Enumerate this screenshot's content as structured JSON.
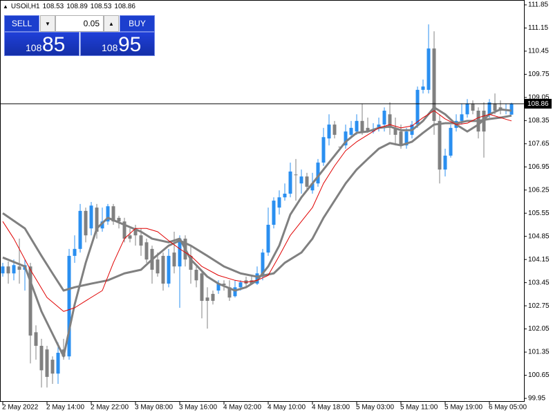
{
  "chart_data": {
    "type": "candlestick",
    "title": "USOil,H1",
    "categories": [
      "2 May 2022",
      null,
      null,
      null,
      null,
      null,
      null,
      null,
      "2 May 14:00",
      null,
      null,
      null,
      null,
      null,
      null,
      null,
      "2 May 22:00",
      null,
      null,
      null,
      null,
      null,
      null,
      null,
      "3 May 08:00",
      null,
      null,
      null,
      null,
      null,
      null,
      null,
      "3 May 16:00",
      null,
      null,
      null,
      null,
      null,
      null,
      null,
      "4 May 02:00",
      null,
      null,
      null,
      null,
      null,
      null,
      null,
      "4 May 10:00",
      null,
      null,
      null,
      null,
      null,
      null,
      null,
      "4 May 18:00",
      null,
      null,
      null,
      null,
      null,
      null,
      null,
      "5 May 03:00",
      null,
      null,
      null,
      null,
      null,
      null,
      null,
      "5 May 11:00",
      null,
      null,
      null,
      null,
      null,
      null,
      null,
      "5 May 19:00",
      null,
      null,
      null,
      null,
      null,
      null,
      null,
      "6 May 05:00",
      null,
      null,
      null,
      null
    ],
    "open": [
      103.73,
      103.94,
      103.73,
      103.94,
      103.84,
      103.94,
      101.95,
      101.54,
      101.43,
      101.12,
      100.7,
      101.43,
      101.22,
      104.26,
      104.47,
      105.62,
      105.09,
      105.72,
      105.09,
      105.3,
      105.76,
      105.41,
      105.3,
      104.88,
      105.09,
      104.88,
      104.67,
      104.47,
      104.15,
      104.26,
      103.42,
      104.36,
      103.94,
      104.78,
      104.26,
      103.84,
      103.73,
      103.0,
      103.11,
      103.21,
      103.42,
      103.31,
      103.04,
      103.31,
      103.52,
      103.52,
      103.42,
      103.63,
      104.36,
      105.2,
      105.72,
      106.03,
      106.14,
      106.72,
      106.45,
      106.66,
      106.24,
      106.45,
      107.08,
      107.81,
      108.23,
      107.56,
      107.6,
      107.92,
      108.02,
      108.34,
      108.13,
      108.02,
      108.13,
      108.23,
      108.54,
      108.13,
      108.02,
      107.6,
      107.92,
      108.23,
      109.28,
      109.28,
      110.53,
      108.34,
      106.87,
      107.29,
      108.13,
      108.34,
      108.54,
      108.86,
      108.65,
      108.65,
      108.54,
      108.86,
      108.75,
      108.65,
      108.53
    ],
    "high": [
      104.05,
      104.09,
      104.15,
      104.78,
      104.15,
      104.05,
      102.16,
      101.75,
      101.54,
      101.22,
      101.64,
      101.75,
      104.47,
      104.88,
      105.83,
      105.72,
      105.89,
      105.83,
      105.72,
      105.83,
      105.83,
      105.47,
      105.41,
      105.09,
      105.2,
      105.09,
      104.78,
      104.57,
      104.36,
      104.36,
      104.47,
      104.99,
      104.88,
      104.88,
      104.57,
      103.94,
      103.84,
      103.31,
      103.21,
      103.52,
      103.52,
      103.52,
      103.52,
      103.52,
      103.63,
      103.67,
      103.94,
      104.47,
      105.72,
      106.03,
      106.24,
      106.45,
      107.08,
      107.19,
      106.87,
      106.77,
      106.77,
      107.19,
      108.13,
      108.54,
      108.34,
      107.56,
      108.23,
      108.34,
      108.54,
      108.86,
      108.44,
      108.27,
      108.44,
      108.75,
      108.9,
      108.44,
      108.23,
      108.13,
      108.34,
      109.38,
      109.59,
      111.26,
      111.05,
      108.54,
      107.5,
      108.23,
      108.54,
      108.86,
      109.0,
      108.96,
      108.75,
      108.9,
      109.0,
      109.17,
      108.96,
      108.86,
      108.89
    ],
    "low": [
      103.63,
      103.42,
      103.52,
      103.42,
      103.21,
      101.01,
      101.12,
      100.28,
      100.28,
      100.39,
      100.39,
      101.12,
      101.12,
      104.05,
      104.36,
      104.67,
      104.88,
      104.78,
      104.99,
      105.2,
      105.2,
      105.09,
      104.67,
      104.67,
      104.57,
      104.26,
      104.05,
      103.42,
      103.63,
      103.21,
      103.31,
      103.73,
      102.69,
      103.94,
      103.42,
      103.31,
      102.37,
      102.06,
      102.79,
      103.11,
      103.21,
      102.9,
      103.0,
      103.21,
      103.31,
      103.38,
      103.38,
      103.52,
      104.26,
      105.09,
      105.51,
      105.93,
      106.03,
      105.93,
      106.14,
      106.24,
      106.14,
      106.35,
      106.98,
      107.6,
      107.81,
      107.54,
      107.5,
      107.81,
      107.92,
      107.92,
      107.98,
      107.96,
      108.02,
      108.02,
      107.92,
      107.6,
      107.5,
      107.5,
      107.81,
      108.13,
      109.17,
      109.17,
      107.92,
      106.45,
      106.66,
      107.23,
      108.02,
      108.23,
      108.44,
      108.54,
      107.81,
      107.23,
      108.44,
      108.54,
      108.54,
      108.54,
      108.53
    ],
    "close": [
      103.94,
      103.73,
      103.98,
      103.84,
      103.98,
      101.85,
      101.54,
      100.8,
      100.6,
      100.7,
      101.33,
      101.22,
      104.26,
      104.47,
      105.62,
      104.88,
      105.78,
      104.99,
      105.3,
      105.76,
      105.3,
      105.3,
      104.78,
      104.78,
      104.88,
      104.57,
      104.15,
      103.84,
      103.73,
      103.42,
      104.26,
      103.94,
      104.78,
      104.15,
      103.84,
      103.52,
      102.9,
      102.9,
      102.9,
      103.42,
      103.38,
      103.0,
      103.31,
      103.46,
      103.42,
      103.42,
      103.73,
      104.36,
      105.2,
      105.93,
      106.03,
      106.14,
      106.81,
      106.72,
      106.66,
      106.35,
      106.45,
      107.08,
      107.85,
      108.23,
      107.92,
      107.54,
      108.02,
      108.13,
      108.34,
      108.02,
      108.02,
      108.06,
      108.23,
      108.65,
      108.13,
      107.92,
      107.6,
      108.02,
      108.23,
      109.28,
      109.38,
      110.53,
      108.34,
      106.87,
      107.29,
      108.13,
      108.34,
      108.54,
      108.86,
      108.65,
      108.02,
      108.02,
      108.9,
      108.65,
      108.65,
      108.69,
      108.86
    ],
    "up_color": "#2a8ff0",
    "down_color": "#808080",
    "indicators": [
      {
        "color": "#808080",
        "width": 3,
        "x": [
          0,
          4,
          7,
          11,
          13,
          15,
          17,
          19,
          22,
          25,
          27,
          30,
          32,
          34,
          37,
          39,
          42,
          44,
          46,
          48,
          50,
          52,
          54,
          56,
          58,
          60,
          62,
          64,
          66,
          68,
          70,
          72,
          74,
          76,
          78,
          80,
          82,
          84,
          86,
          88,
          90,
          92
        ],
        "values": [
          104.21,
          103.94,
          102.58,
          101.22,
          102.79,
          104.05,
          105.09,
          105.41,
          105.2,
          104.99,
          104.78,
          104.67,
          104.78,
          104.15,
          103.63,
          103.42,
          103.21,
          103.31,
          103.52,
          103.94,
          104.57,
          105.51,
          106.03,
          106.45,
          106.87,
          107.29,
          107.71,
          107.98,
          108.02,
          108.13,
          108.17,
          108.06,
          108.06,
          108.34,
          108.75,
          108.54,
          108.23,
          108.02,
          108.23,
          108.54,
          108.69,
          108.65
        ]
      },
      {
        "color": "#808080",
        "width": 3,
        "x": [
          0,
          4,
          7,
          9,
          11,
          13,
          16,
          19,
          22,
          25,
          27,
          30,
          32,
          34,
          37,
          40,
          43,
          46,
          49,
          51,
          54,
          56,
          58,
          60,
          62,
          64,
          66,
          68,
          70,
          72,
          74,
          76,
          78,
          80,
          82,
          84,
          86,
          88,
          90,
          92
        ],
        "values": [
          105.55,
          105.09,
          104.26,
          103.73,
          103.21,
          103.31,
          103.42,
          103.52,
          103.73,
          103.84,
          104.15,
          104.57,
          104.72,
          104.57,
          104.26,
          103.94,
          103.73,
          103.63,
          103.73,
          104.05,
          104.36,
          104.78,
          105.41,
          105.93,
          106.45,
          106.87,
          107.19,
          107.5,
          107.67,
          107.6,
          107.71,
          107.98,
          108.23,
          108.27,
          108.27,
          108.34,
          108.34,
          108.4,
          108.44,
          108.5
        ]
      },
      {
        "color": "#e00000",
        "width": 1,
        "x": [
          0,
          2,
          5,
          8,
          11,
          13,
          15,
          18,
          20,
          22,
          24,
          26,
          28,
          30,
          32,
          34,
          36,
          39,
          42,
          44,
          46,
          48,
          50,
          52,
          54,
          56,
          58,
          60,
          62,
          64,
          66,
          68,
          70,
          72,
          74,
          76,
          78,
          80,
          82,
          84,
          86,
          88,
          90,
          92
        ],
        "values": [
          105.3,
          104.78,
          103.84,
          103.0,
          102.58,
          102.69,
          102.9,
          103.21,
          104.05,
          104.78,
          105.09,
          105.09,
          104.99,
          104.72,
          104.47,
          104.26,
          103.94,
          103.67,
          103.52,
          103.46,
          103.52,
          103.67,
          104.26,
          104.88,
          105.3,
          105.72,
          106.45,
          106.98,
          107.44,
          107.71,
          107.92,
          108.13,
          108.23,
          108.13,
          108.19,
          108.44,
          108.65,
          108.4,
          108.23,
          108.27,
          108.44,
          108.54,
          108.44,
          108.34
        ]
      }
    ],
    "price_line": 108.86,
    "price_line_color": "#000000",
    "ylim": [
      99.95,
      111.85
    ],
    "yticks": [
      111.85,
      111.15,
      110.45,
      109.75,
      109.05,
      108.35,
      107.65,
      106.95,
      106.25,
      105.55,
      104.85,
      104.15,
      103.45,
      102.75,
      102.05,
      101.35,
      100.65,
      99.95
    ]
  },
  "trade_panel": {
    "sell": "SELL",
    "buy": "BUY",
    "lot": 0.05,
    "sell_price": {
      "prefix": "108",
      "main": "85"
    },
    "buy_price": {
      "prefix": "108",
      "main": "95"
    }
  }
}
